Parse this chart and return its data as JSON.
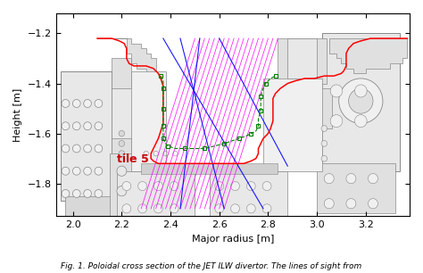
{
  "xlabel": "Major radius [m]",
  "ylabel": "Height [m]",
  "xlim": [
    1.93,
    3.38
  ],
  "ylim": [
    -1.93,
    -1.12
  ],
  "caption": "Fig. 1. Poloidal cross section of the JET ILW divertor. The lines of sight from",
  "tile5_label": "tile 5",
  "tile5_x": 2.18,
  "tile5_y": -1.715,
  "tile5_color": "#cc0000",
  "tile5_fontsize": 9,
  "red_contour": [
    [
      2.1,
      -1.22
    ],
    [
      2.13,
      -1.22
    ],
    [
      2.16,
      -1.22
    ],
    [
      2.19,
      -1.23
    ],
    [
      2.21,
      -1.24
    ],
    [
      2.22,
      -1.26
    ],
    [
      2.22,
      -1.28
    ],
    [
      2.22,
      -1.3
    ],
    [
      2.23,
      -1.32
    ],
    [
      2.25,
      -1.33
    ],
    [
      2.27,
      -1.33
    ],
    [
      2.3,
      -1.33
    ],
    [
      2.33,
      -1.34
    ],
    [
      2.35,
      -1.36
    ],
    [
      2.36,
      -1.38
    ],
    [
      2.37,
      -1.41
    ],
    [
      2.37,
      -1.44
    ],
    [
      2.37,
      -1.47
    ],
    [
      2.37,
      -1.5
    ],
    [
      2.37,
      -1.53
    ],
    [
      2.37,
      -1.56
    ],
    [
      2.36,
      -1.59
    ],
    [
      2.35,
      -1.62
    ],
    [
      2.34,
      -1.64
    ],
    [
      2.33,
      -1.66
    ],
    [
      2.32,
      -1.68
    ],
    [
      2.32,
      -1.7
    ],
    [
      2.33,
      -1.71
    ],
    [
      2.35,
      -1.72
    ],
    [
      2.38,
      -1.72
    ],
    [
      2.42,
      -1.72
    ],
    [
      2.46,
      -1.72
    ],
    [
      2.5,
      -1.72
    ],
    [
      2.54,
      -1.72
    ],
    [
      2.58,
      -1.72
    ],
    [
      2.62,
      -1.72
    ],
    [
      2.66,
      -1.72
    ],
    [
      2.7,
      -1.72
    ],
    [
      2.73,
      -1.71
    ],
    [
      2.75,
      -1.7
    ],
    [
      2.76,
      -1.68
    ],
    [
      2.76,
      -1.66
    ],
    [
      2.77,
      -1.64
    ],
    [
      2.78,
      -1.62
    ],
    [
      2.8,
      -1.6
    ],
    [
      2.81,
      -1.58
    ],
    [
      2.82,
      -1.55
    ],
    [
      2.82,
      -1.52
    ],
    [
      2.82,
      -1.49
    ],
    [
      2.82,
      -1.46
    ],
    [
      2.83,
      -1.44
    ],
    [
      2.85,
      -1.42
    ],
    [
      2.88,
      -1.4
    ],
    [
      2.91,
      -1.39
    ],
    [
      2.95,
      -1.38
    ],
    [
      2.99,
      -1.38
    ],
    [
      3.03,
      -1.37
    ],
    [
      3.07,
      -1.37
    ],
    [
      3.1,
      -1.36
    ],
    [
      3.11,
      -1.35
    ],
    [
      3.12,
      -1.33
    ],
    [
      3.12,
      -1.3
    ],
    [
      3.12,
      -1.28
    ],
    [
      3.13,
      -1.26
    ],
    [
      3.15,
      -1.24
    ],
    [
      3.18,
      -1.23
    ],
    [
      3.22,
      -1.22
    ],
    [
      3.26,
      -1.22
    ],
    [
      3.3,
      -1.22
    ],
    [
      3.34,
      -1.22
    ],
    [
      3.37,
      -1.22
    ]
  ],
  "green_contour": [
    [
      2.36,
      -1.37
    ],
    [
      2.37,
      -1.39
    ],
    [
      2.37,
      -1.42
    ],
    [
      2.37,
      -1.46
    ],
    [
      2.37,
      -1.5
    ],
    [
      2.37,
      -1.54
    ],
    [
      2.37,
      -1.57
    ],
    [
      2.37,
      -1.6
    ],
    [
      2.37,
      -1.62
    ],
    [
      2.38,
      -1.64
    ],
    [
      2.39,
      -1.65
    ],
    [
      2.42,
      -1.66
    ],
    [
      2.46,
      -1.66
    ],
    [
      2.5,
      -1.66
    ],
    [
      2.54,
      -1.66
    ],
    [
      2.58,
      -1.65
    ],
    [
      2.62,
      -1.64
    ],
    [
      2.65,
      -1.63
    ],
    [
      2.68,
      -1.62
    ],
    [
      2.71,
      -1.61
    ],
    [
      2.73,
      -1.6
    ],
    [
      2.75,
      -1.59
    ],
    [
      2.76,
      -1.57
    ],
    [
      2.76,
      -1.54
    ],
    [
      2.77,
      -1.51
    ],
    [
      2.77,
      -1.48
    ],
    [
      2.77,
      -1.45
    ],
    [
      2.78,
      -1.42
    ],
    [
      2.79,
      -1.4
    ],
    [
      2.81,
      -1.38
    ],
    [
      2.83,
      -1.37
    ]
  ],
  "blue_lines": [
    {
      "x": [
        2.37,
        2.78
      ],
      "y": [
        -1.22,
        -1.9
      ]
    },
    {
      "x": [
        2.44,
        2.62
      ],
      "y": [
        -1.22,
        -1.9
      ]
    },
    {
      "x": [
        2.52,
        2.44
      ],
      "y": [
        -1.22,
        -1.9
      ]
    },
    {
      "x": [
        2.6,
        2.88
      ],
      "y": [
        -1.22,
        -1.73
      ]
    }
  ],
  "magenta_top_x": [
    2.5,
    2.52,
    2.54,
    2.56,
    2.58,
    2.6,
    2.62,
    2.64,
    2.66,
    2.68,
    2.7,
    2.72,
    2.74,
    2.76,
    2.78,
    2.8,
    2.82,
    2.84
  ],
  "magenta_bot_x": [
    2.28,
    2.3,
    2.32,
    2.34,
    2.36,
    2.38,
    2.4,
    2.42,
    2.44,
    2.46,
    2.48,
    2.5,
    2.52,
    2.54,
    2.56,
    2.58,
    2.6,
    2.62
  ],
  "magenta_y_top": -1.22,
  "magenta_y_bot": -1.9,
  "xticks": [
    2.0,
    2.2,
    2.4,
    2.6,
    2.8,
    3.0,
    3.2
  ],
  "yticks": [
    -1.2,
    -1.4,
    -1.6,
    -1.8
  ],
  "bg_color": "#ffffff",
  "machinery_color": "#aaaaaa",
  "machinery_line_color": "#888888"
}
